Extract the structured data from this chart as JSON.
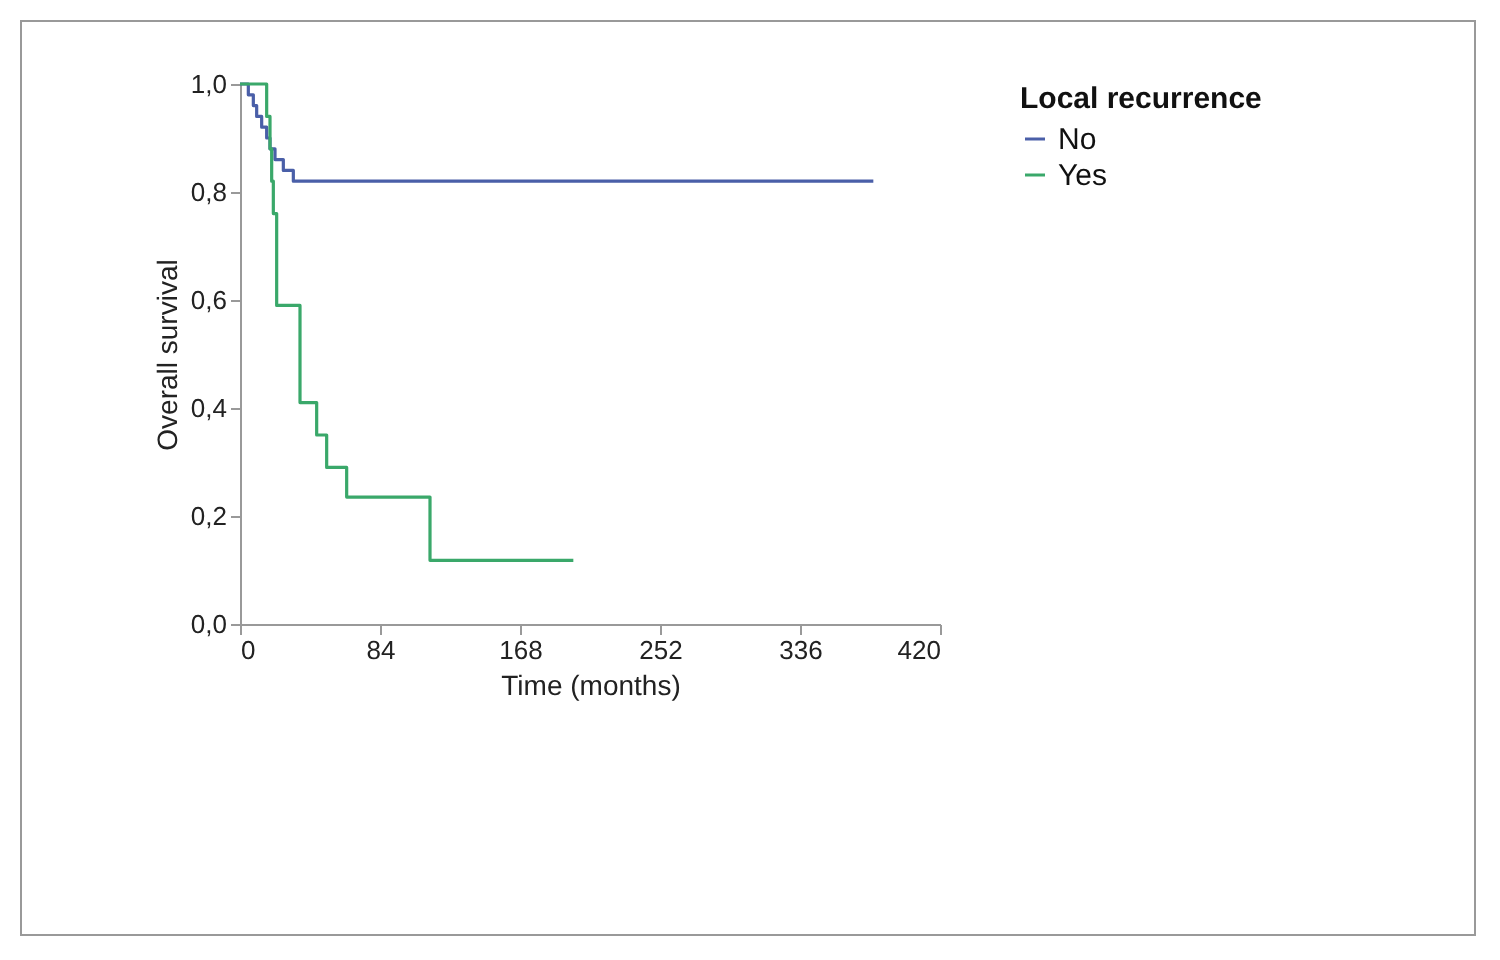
{
  "chart_data": {
    "type": "step",
    "xlabel": "Time (months)",
    "ylabel": "Overall survival",
    "legend_title": "Local recurrence",
    "legend": "right",
    "xlim": [
      0,
      420
    ],
    "xticks": [
      0,
      84,
      168,
      252,
      336,
      420
    ],
    "ylim": [
      0,
      1
    ],
    "yticks": [
      {
        "value": 0,
        "label": "0,0"
      },
      {
        "value": 0.2,
        "label": "0,2"
      },
      {
        "value": 0.4,
        "label": "0,4"
      },
      {
        "value": 0.6,
        "label": "0,6"
      },
      {
        "value": 0.8,
        "label": "0,8"
      },
      {
        "value": 1,
        "label": "1,0"
      }
    ],
    "grid": false,
    "series": [
      {
        "name": "No",
        "color": "#4a5fa8",
        "x": [
          0,
          5,
          8,
          10,
          13,
          16,
          18,
          21,
          26,
          32,
          380
        ],
        "values": [
          1,
          0.98,
          0.96,
          0.94,
          0.92,
          0.9,
          0.88,
          0.86,
          0.84,
          0.82,
          0.82
        ]
      },
      {
        "name": "Yes",
        "color": "#3aa86a",
        "x": [
          0,
          16,
          18,
          19,
          20,
          22,
          36,
          46,
          52,
          64,
          114,
          200
        ],
        "values": [
          1,
          0.94,
          0.88,
          0.82,
          0.76,
          0.59,
          0.41,
          0.35,
          0.29,
          0.235,
          0.118,
          0.118
        ]
      }
    ]
  }
}
